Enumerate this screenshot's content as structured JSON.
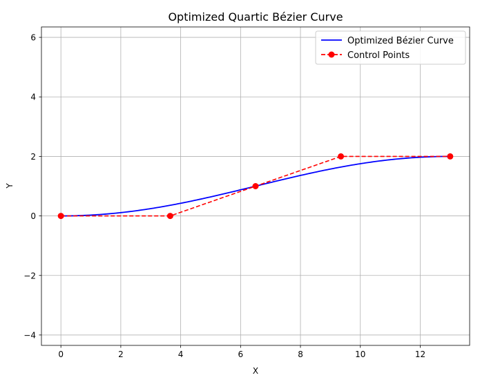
{
  "chart_data": {
    "type": "line",
    "title": "Optimized Quartic Bézier Curve",
    "xlabel": "X",
    "ylabel": "Y",
    "xlim": [
      -0.65,
      13.65
    ],
    "ylim": [
      -4.35,
      6.35
    ],
    "xticks": [
      0,
      2,
      4,
      6,
      8,
      10,
      12
    ],
    "yticks": [
      -4,
      -2,
      0,
      2,
      4,
      6
    ],
    "grid": true,
    "legend_position": "top-right",
    "series": [
      {
        "name": "Optimized Bézier Curve",
        "color": "#0000ff",
        "style": "solid",
        "kind": "bezier-quartic"
      },
      {
        "name": "Control Points",
        "color": "#ff0000",
        "style": "dashed",
        "marker": "circle",
        "points": [
          {
            "x": 0,
            "y": 0
          },
          {
            "x": 3.65,
            "y": 0
          },
          {
            "x": 6.5,
            "y": 1
          },
          {
            "x": 9.35,
            "y": 2
          },
          {
            "x": 13,
            "y": 2
          }
        ]
      }
    ]
  }
}
